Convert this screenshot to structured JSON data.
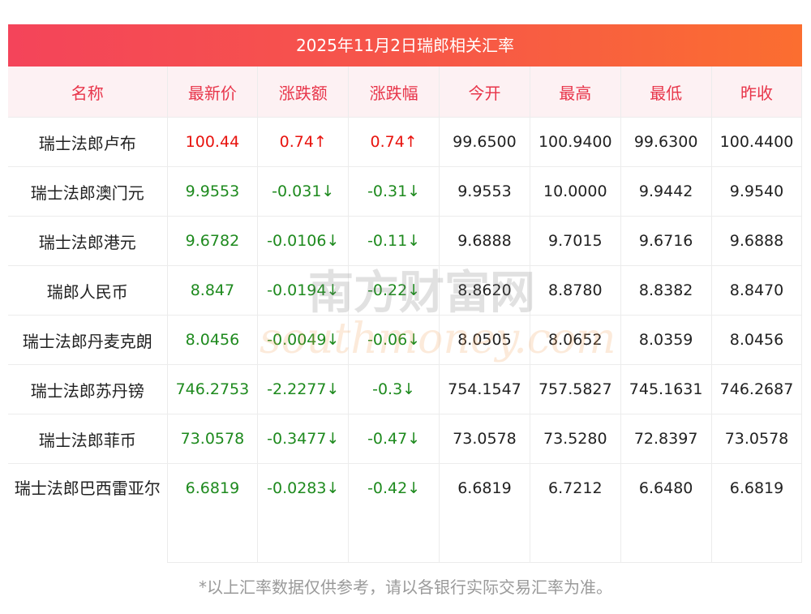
{
  "title": "2025年11月2日瑞郎相关汇率",
  "headers": [
    "名称",
    "最新价",
    "涨跌额",
    "涨跌幅",
    "今开",
    "最高",
    "最低",
    "昨收"
  ],
  "rows": [
    {
      "name": "瑞士法郎卢布",
      "latest": "100.44",
      "change": "0.74↑",
      "pct": "0.74↑",
      "open": "99.6500",
      "high": "100.9400",
      "low": "99.6300",
      "prev": "100.4400",
      "dir": "up"
    },
    {
      "name": "瑞士法郎澳门元",
      "latest": "9.9553",
      "change": "-0.031↓",
      "pct": "-0.31↓",
      "open": "9.9553",
      "high": "10.0000",
      "low": "9.9442",
      "prev": "9.9540",
      "dir": "down"
    },
    {
      "name": "瑞士法郎港元",
      "latest": "9.6782",
      "change": "-0.0106↓",
      "pct": "-0.11↓",
      "open": "9.6888",
      "high": "9.7015",
      "low": "9.6716",
      "prev": "9.6888",
      "dir": "down"
    },
    {
      "name": "瑞郎人民币",
      "latest": "8.847",
      "change": "-0.0194↓",
      "pct": "-0.22↓",
      "open": "8.8620",
      "high": "8.8780",
      "low": "8.8382",
      "prev": "8.8470",
      "dir": "down"
    },
    {
      "name": "瑞士法郎丹麦克朗",
      "latest": "8.0456",
      "change": "-0.0049↓",
      "pct": "-0.06↓",
      "open": "8.0505",
      "high": "8.0652",
      "low": "8.0359",
      "prev": "8.0456",
      "dir": "down"
    },
    {
      "name": "瑞士法郎苏丹镑",
      "latest": "746.2753",
      "change": "-2.2277↓",
      "pct": "-0.3↓",
      "open": "754.1547",
      "high": "757.5827",
      "low": "745.1631",
      "prev": "746.2687",
      "dir": "down"
    },
    {
      "name": "瑞士法郎菲币",
      "latest": "73.0578",
      "change": "-0.3477↓",
      "pct": "-0.47↓",
      "open": "73.0578",
      "high": "73.5280",
      "low": "72.8397",
      "prev": "73.0578",
      "dir": "down"
    },
    {
      "name": "瑞士法郎巴西雷亚尔",
      "latest": "6.6819",
      "change": "-0.0283↓",
      "pct": "-0.42↓",
      "open": "6.6819",
      "high": "6.7212",
      "low": "6.6480",
      "prev": "6.6819",
      "dir": "down"
    }
  ],
  "watermark": {
    "cn": "南方财富网",
    "en": "southmoney.com"
  },
  "note": "*以上汇率数据仅供参考，请以各银行实际交易汇率为准。",
  "colors": {
    "up": "#e8130e",
    "down": "#1e8a1e",
    "header_text": "#e8354a",
    "title_bg": "#f4445a"
  }
}
